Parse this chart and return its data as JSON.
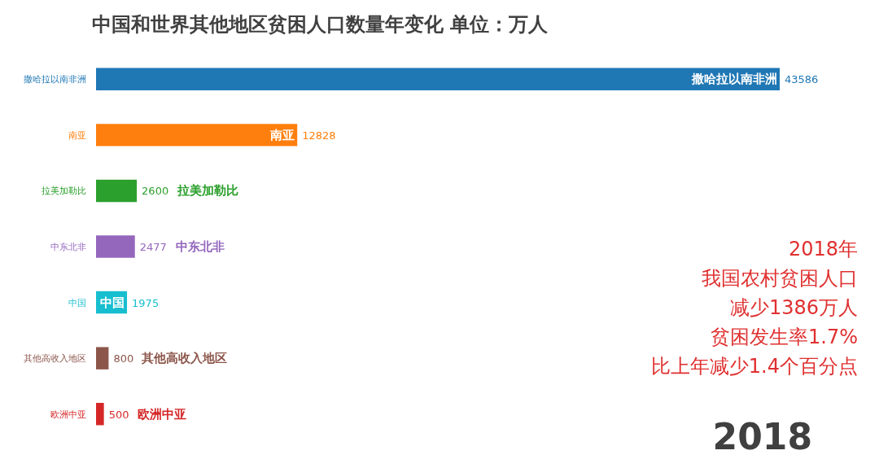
{
  "chart_data": {
    "type": "bar",
    "orientation": "horizontal",
    "title": "中国和世界其他地区贫困人口数量年变化  单位：万人",
    "categories": [
      "撒哈拉以南非洲",
      "南亚",
      "拉美加勒比",
      "中东北非",
      "中国",
      "其他高收入地区",
      "欧洲中亚"
    ],
    "values": [
      43586,
      12828,
      2600,
      2477,
      1975,
      800,
      500
    ],
    "colors": [
      "#1f77b4",
      "#ff7f0e",
      "#2ca02c",
      "#9467bd",
      "#17becf",
      "#8c564b",
      "#d62728"
    ],
    "data_labels": true,
    "tick_labels": "y",
    "annotations": [
      "2018年",
      "我国农村贫困人口",
      "减少1386万人",
      "贫困发生率1.7%",
      "比上年减少1.4个百分点",
      "2018"
    ]
  }
}
